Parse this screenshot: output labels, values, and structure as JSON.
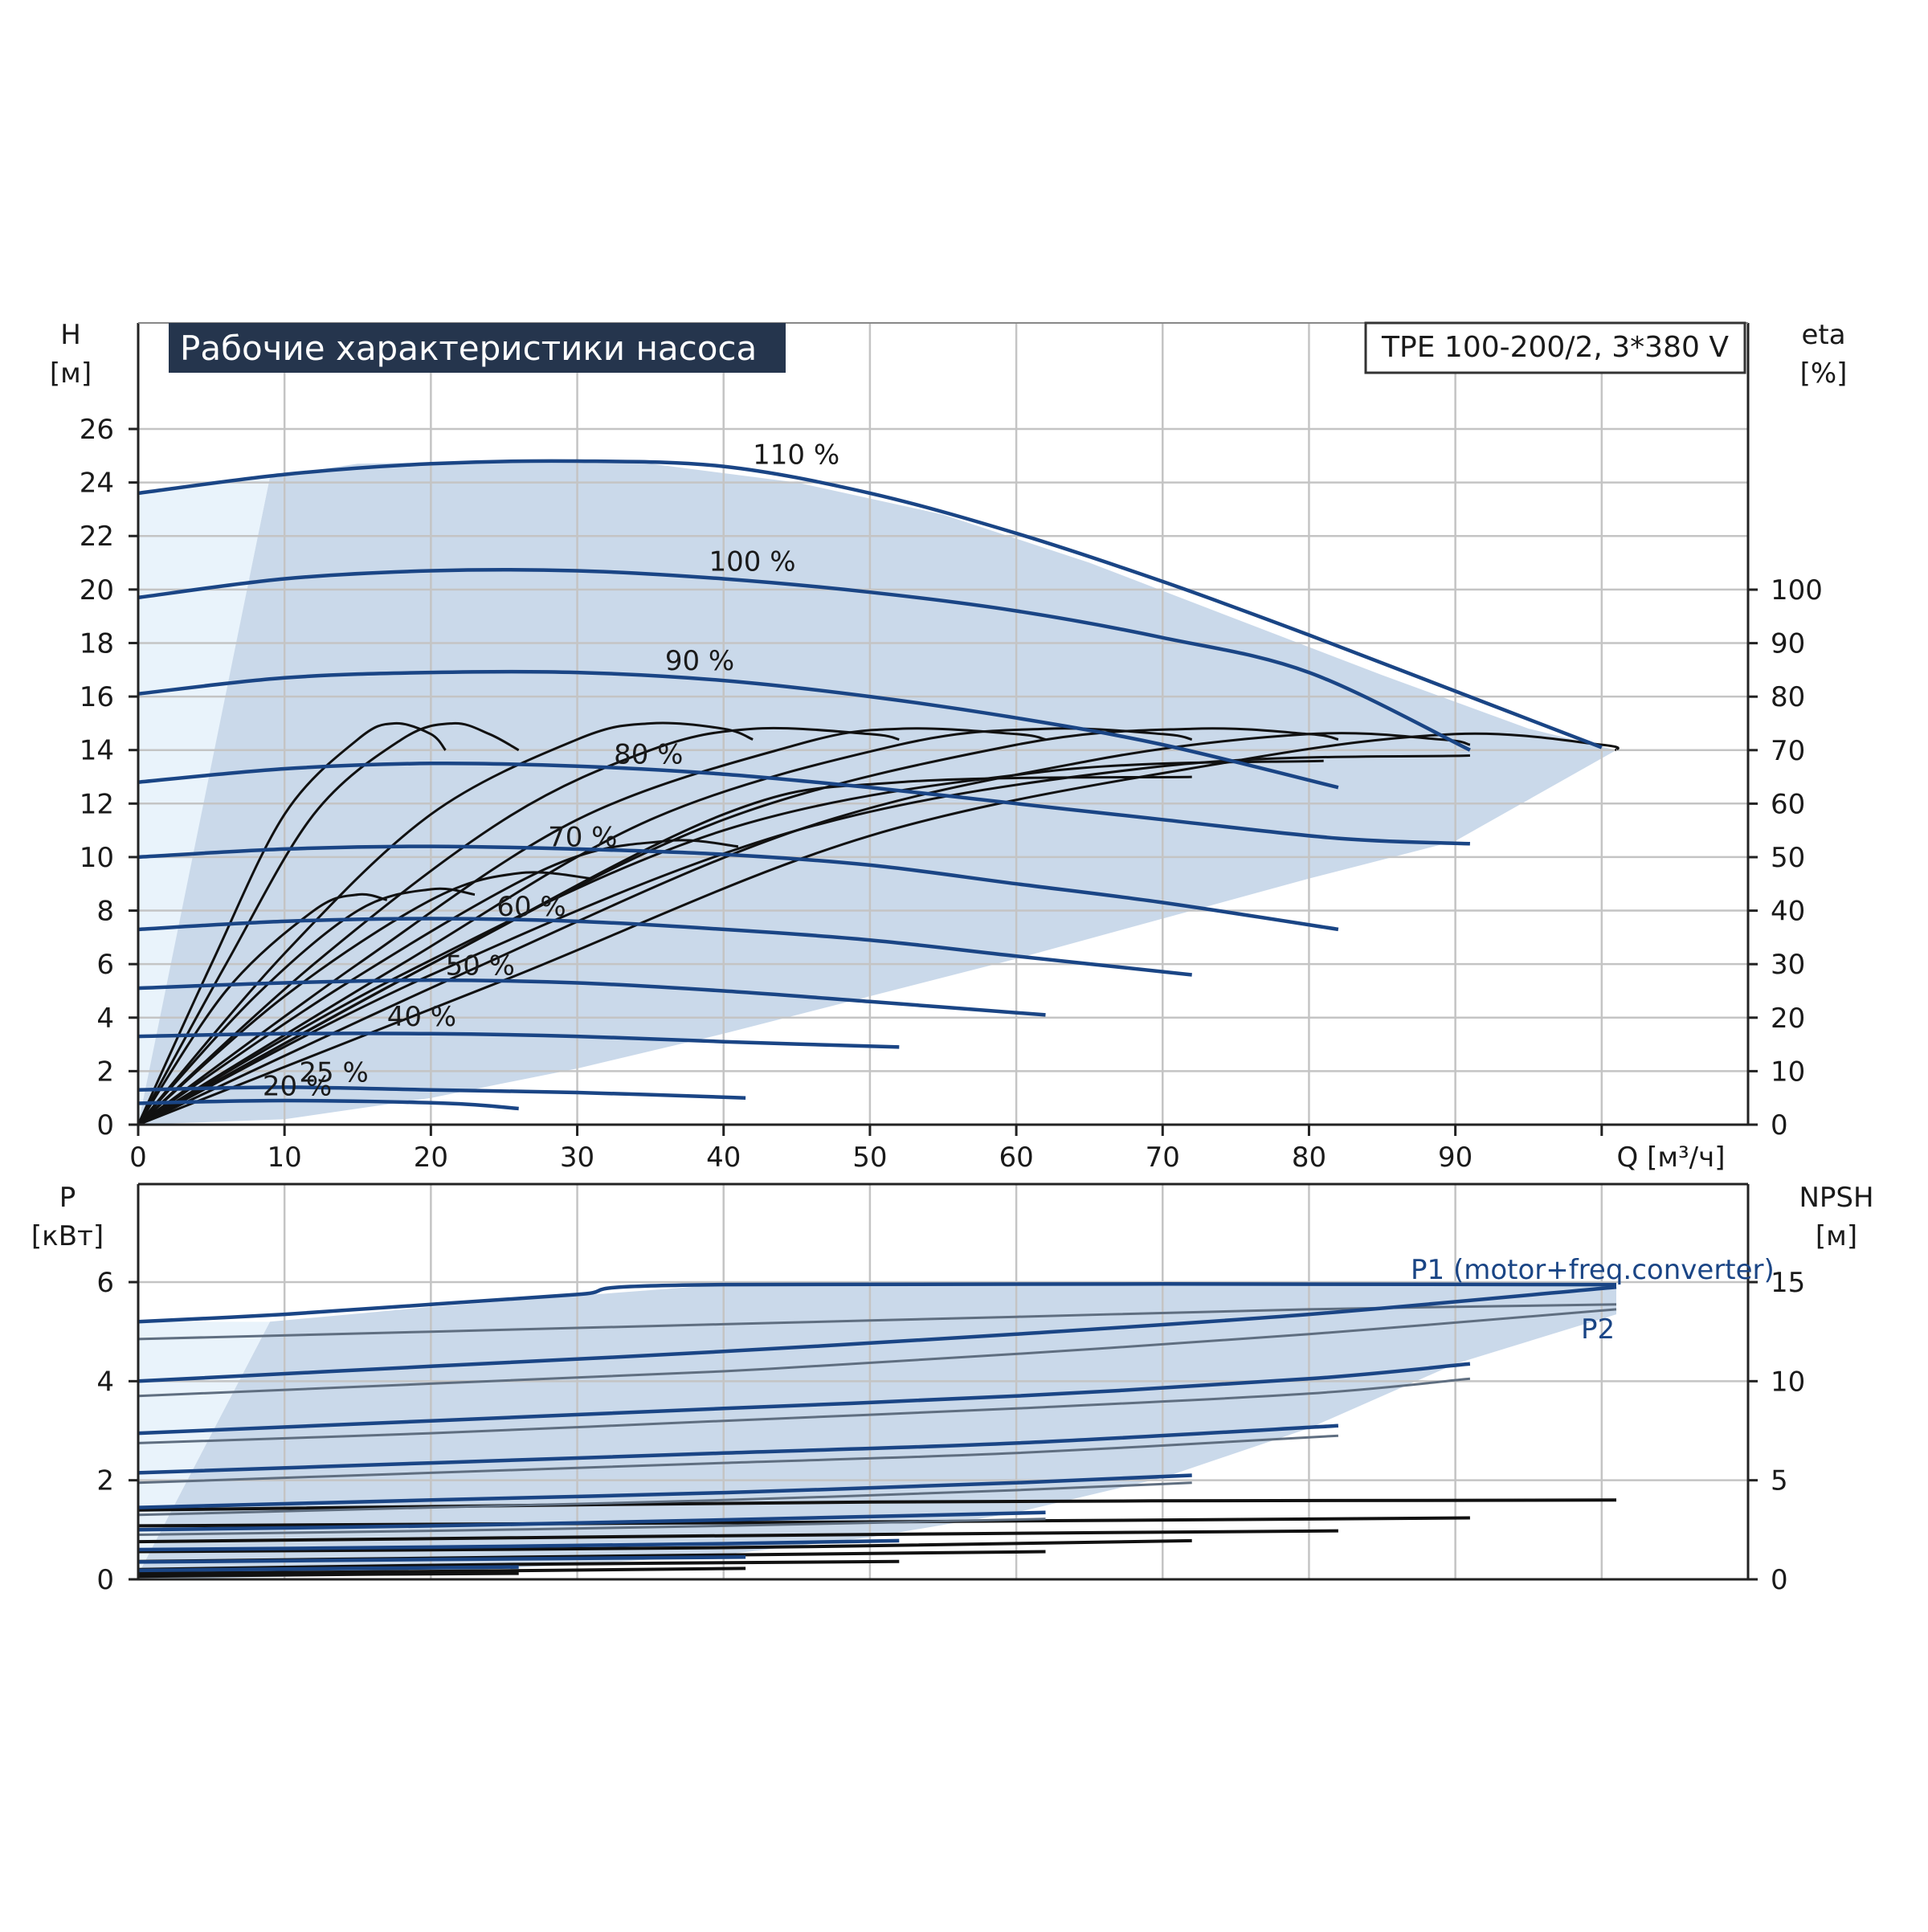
{
  "chart_data": [
    {
      "type": "line",
      "title": "Рабочие характеристики насоса",
      "model_label": "TPE 100-200/2, 3*380 V",
      "y_label_name": "H",
      "y_label_unit": "[м]",
      "y2_label_name": "eta",
      "y2_label_unit": "[%]",
      "x_label": "Q [м³/ч]",
      "xlim": [
        0,
        110
      ],
      "ylim": [
        0,
        28
      ],
      "x_ticks": [
        0,
        10,
        20,
        30,
        40,
        50,
        60,
        70,
        80,
        90
      ],
      "y_ticks": [
        0,
        2,
        4,
        6,
        8,
        10,
        12,
        14,
        16,
        18,
        20,
        22,
        24,
        26
      ],
      "y2_ticks": [
        0,
        10,
        20,
        30,
        40,
        50,
        60,
        70,
        80,
        90,
        100
      ],
      "y2lim": [
        0,
        140
      ],
      "grid": true,
      "series_color": "#1a4585",
      "efficiency_color": "#111111",
      "area_color": "#cad9ea",
      "series": [
        {
          "name": "110 %",
          "label_at": [
            42,
            24.4
          ],
          "x": [
            0,
            10,
            20,
            30,
            40,
            50,
            60,
            70,
            80,
            90,
            100
          ],
          "values": [
            23.6,
            24.3,
            24.7,
            24.8,
            24.6,
            23.6,
            22.1,
            20.3,
            18.3,
            16.2,
            14.1
          ]
        },
        {
          "name": "100 %",
          "label_at": [
            39,
            20.4
          ],
          "x": [
            0,
            10,
            20,
            30,
            40,
            50,
            60,
            70,
            80,
            91
          ],
          "values": [
            19.7,
            20.4,
            20.7,
            20.7,
            20.4,
            19.9,
            19.2,
            18.2,
            16.9,
            14.0
          ]
        },
        {
          "name": "90 %",
          "label_at": [
            36,
            16.7
          ],
          "x": [
            0,
            10,
            20,
            30,
            40,
            50,
            60,
            70,
            82
          ],
          "values": [
            16.1,
            16.7,
            16.9,
            16.9,
            16.6,
            16.0,
            15.2,
            14.2,
            12.6
          ]
        },
        {
          "name": "80 %",
          "label_at": [
            32.5,
            13.2
          ],
          "x": [
            0,
            10,
            20,
            30,
            40,
            50,
            60,
            70,
            82,
            91
          ],
          "values": [
            12.8,
            13.3,
            13.5,
            13.4,
            13.1,
            12.6,
            12.0,
            11.4,
            10.7,
            10.5
          ]
        },
        {
          "name": "70 %",
          "label_at": [
            28,
            10.1
          ],
          "x": [
            0,
            10,
            20,
            30,
            40,
            50,
            60,
            70,
            82
          ],
          "values": [
            10.0,
            10.3,
            10.4,
            10.3,
            10.1,
            9.7,
            9.0,
            8.3,
            7.3
          ]
        },
        {
          "name": "60 %",
          "label_at": [
            24.5,
            7.5
          ],
          "x": [
            0,
            10,
            20,
            30,
            40,
            50,
            60,
            72
          ],
          "values": [
            7.3,
            7.6,
            7.7,
            7.6,
            7.3,
            6.9,
            6.3,
            5.6
          ]
        },
        {
          "name": "50 %",
          "label_at": [
            21,
            5.3
          ],
          "x": [
            0,
            10,
            20,
            30,
            40,
            50,
            62
          ],
          "values": [
            5.1,
            5.3,
            5.4,
            5.3,
            5.0,
            4.6,
            4.1
          ]
        },
        {
          "name": "40 %",
          "label_at": [
            17,
            3.4
          ],
          "x": [
            0,
            10,
            20,
            30,
            40,
            52
          ],
          "values": [
            3.3,
            3.4,
            3.4,
            3.3,
            3.1,
            2.9
          ]
        },
        {
          "name": "25 %",
          "label_at": [
            11,
            1.3
          ],
          "x": [
            0,
            10,
            20,
            30,
            41.5
          ],
          "values": [
            1.3,
            1.4,
            1.3,
            1.2,
            1.0
          ]
        },
        {
          "name": "20 %",
          "label_at": [
            8.5,
            0.8
          ],
          "x": [
            0,
            10,
            21,
            26
          ],
          "values": [
            0.8,
            0.9,
            0.8,
            0.6
          ]
        }
      ],
      "efficiency_series": [
        {
          "x": [
            0,
            5,
            10,
            15,
            17.5,
            20,
            21
          ],
          "values": [
            0,
            30,
            58,
            72,
            75,
            73,
            70
          ]
        },
        {
          "x": [
            0,
            6,
            12,
            18,
            21.5,
            24,
            26
          ],
          "values": [
            0,
            30,
            58,
            72,
            75,
            73,
            70
          ]
        },
        {
          "x": [
            0,
            10,
            20,
            30,
            35,
            40,
            42
          ],
          "values": [
            0,
            32,
            58,
            72,
            75,
            74,
            72
          ]
        },
        {
          "x": [
            0,
            12,
            25,
            35,
            42,
            50,
            52
          ],
          "values": [
            0,
            30,
            57,
            70,
            74,
            73,
            72
          ]
        },
        {
          "x": [
            0,
            15,
            30,
            45,
            52,
            60,
            62
          ],
          "values": [
            0,
            30,
            57,
            71,
            74,
            73,
            72
          ]
        },
        {
          "x": [
            0,
            18,
            35,
            52,
            62,
            70,
            72
          ],
          "values": [
            0,
            30,
            57,
            71,
            74,
            73,
            72
          ]
        },
        {
          "x": [
            0,
            20,
            40,
            60,
            72,
            80,
            82
          ],
          "values": [
            0,
            30,
            57,
            71,
            74,
            73,
            72
          ]
        },
        {
          "x": [
            0,
            22,
            45,
            65,
            80,
            89,
            91
          ],
          "values": [
            0,
            28,
            55,
            68,
            73,
            72,
            71
          ]
        },
        {
          "x": [
            0,
            25,
            50,
            75,
            90,
            100,
            101
          ],
          "values": [
            0,
            27,
            54,
            68,
            73,
            71,
            70
          ]
        },
        {
          "x": [
            0,
            6,
            12,
            15,
            17
          ],
          "values": [
            0,
            25,
            40,
            43,
            42
          ]
        },
        {
          "x": [
            0,
            8,
            15,
            20,
            23
          ],
          "values": [
            0,
            24,
            40,
            44,
            43
          ]
        },
        {
          "x": [
            0,
            10,
            20,
            26,
            31
          ],
          "values": [
            0,
            24,
            42,
            47,
            46
          ]
        },
        {
          "x": [
            0,
            14,
            28,
            36,
            41
          ],
          "values": [
            0,
            26,
            48,
            53,
            52
          ]
        },
        {
          "x": [
            0,
            20,
            40,
            52,
            72
          ],
          "values": [
            0,
            30,
            58,
            64,
            65
          ]
        },
        {
          "x": [
            0,
            18,
            40,
            62,
            81
          ],
          "values": [
            0,
            28,
            55,
            66,
            68
          ]
        },
        {
          "x": [
            0,
            20,
            45,
            70,
            91
          ],
          "values": [
            0,
            28,
            55,
            67,
            69
          ]
        }
      ],
      "area_outline": {
        "x": [
          0,
          9,
          15,
          25,
          35,
          45,
          55,
          65,
          75,
          85,
          95,
          101,
          90,
          80,
          70,
          60,
          50,
          40,
          30,
          20,
          10,
          0
        ],
        "y": [
          0.3,
          24.2,
          24.7,
          24.8,
          24.7,
          24.0,
          22.8,
          21.0,
          18.9,
          16.8,
          14.8,
          14.0,
          10.6,
          9.2,
          7.7,
          6.2,
          4.8,
          3.4,
          2.1,
          1.0,
          0.2,
          0
        ]
      }
    },
    {
      "type": "line",
      "y_label_name": "P",
      "y_label_unit": "[кВт]",
      "y2_label_name": "NPSH",
      "y2_label_unit": "[м]",
      "xlim": [
        0,
        110
      ],
      "ylim": [
        0,
        8
      ],
      "y_ticks": [
        0,
        2,
        4,
        6
      ],
      "y2_ticks": [
        0,
        5,
        10,
        15
      ],
      "y2lim": [
        0,
        20
      ],
      "grid": true,
      "series_labels": [
        "P1 (motor+freq.converter)",
        "P2"
      ],
      "series": [
        {
          "group": "P1",
          "x": [
            0,
            10,
            20,
            30,
            40,
            101
          ],
          "values": [
            5.2,
            5.35,
            5.55,
            5.75,
            5.95,
            5.95
          ]
        },
        {
          "group": "P2",
          "x": [
            0,
            20,
            40,
            60,
            80,
            101
          ],
          "values": [
            4.85,
            5.0,
            5.15,
            5.3,
            5.45,
            5.55
          ]
        },
        {
          "group": "P1",
          "x": [
            0,
            20,
            40,
            60,
            80,
            101
          ],
          "values": [
            4.0,
            4.3,
            4.6,
            4.95,
            5.35,
            5.9
          ]
        },
        {
          "group": "P2",
          "x": [
            0,
            20,
            40,
            60,
            80,
            101
          ],
          "values": [
            3.7,
            3.95,
            4.2,
            4.55,
            4.95,
            5.45
          ]
        },
        {
          "group": "P1",
          "x": [
            0,
            20,
            40,
            60,
            80,
            91
          ],
          "values": [
            2.95,
            3.2,
            3.45,
            3.7,
            4.05,
            4.35
          ]
        },
        {
          "group": "P2",
          "x": [
            0,
            20,
            40,
            60,
            80,
            91
          ],
          "values": [
            2.75,
            2.95,
            3.2,
            3.45,
            3.75,
            4.05
          ]
        },
        {
          "group": "P1",
          "x": [
            0,
            20,
            40,
            60,
            82
          ],
          "values": [
            2.15,
            2.35,
            2.55,
            2.75,
            3.1
          ]
        },
        {
          "group": "P2",
          "x": [
            0,
            20,
            40,
            60,
            82
          ],
          "values": [
            1.95,
            2.15,
            2.35,
            2.55,
            2.9
          ]
        },
        {
          "group": "P1",
          "x": [
            0,
            20,
            40,
            60,
            72
          ],
          "values": [
            1.45,
            1.6,
            1.75,
            1.95,
            2.1
          ]
        },
        {
          "group": "P2",
          "x": [
            0,
            20,
            40,
            60,
            72
          ],
          "values": [
            1.3,
            1.45,
            1.6,
            1.8,
            1.95
          ]
        },
        {
          "group": "P1",
          "x": [
            0,
            20,
            40,
            62
          ],
          "values": [
            1.0,
            1.08,
            1.2,
            1.35
          ]
        },
        {
          "group": "P2",
          "x": [
            0,
            20,
            40,
            62
          ],
          "values": [
            0.9,
            0.98,
            1.08,
            1.22
          ]
        },
        {
          "group": "P1",
          "x": [
            0,
            20,
            40,
            52
          ],
          "values": [
            0.6,
            0.65,
            0.72,
            0.78
          ]
        },
        {
          "group": "P1",
          "x": [
            0,
            20,
            41.5
          ],
          "values": [
            0.35,
            0.4,
            0.45
          ]
        },
        {
          "group": "P1",
          "x": [
            0,
            15,
            26
          ],
          "values": [
            0.18,
            0.22,
            0.25
          ]
        }
      ],
      "npsh_series": [
        {
          "x": [
            0,
            50,
            101
          ],
          "values": [
            3.5,
            3.9,
            4.0
          ]
        },
        {
          "x": [
            0,
            50,
            91
          ],
          "values": [
            2.7,
            2.9,
            3.1
          ]
        },
        {
          "x": [
            0,
            40,
            82
          ],
          "values": [
            1.9,
            2.2,
            2.45
          ]
        },
        {
          "x": [
            0,
            40,
            72
          ],
          "values": [
            1.4,
            1.6,
            1.95
          ]
        },
        {
          "x": [
            0,
            30,
            62
          ],
          "values": [
            0.9,
            1.15,
            1.4
          ]
        },
        {
          "x": [
            0,
            25,
            52
          ],
          "values": [
            0.5,
            0.75,
            0.9
          ]
        },
        {
          "x": [
            0,
            20,
            41.5
          ],
          "values": [
            0.3,
            0.4,
            0.55
          ]
        },
        {
          "x": [
            0,
            15,
            26
          ],
          "values": [
            0.15,
            0.25,
            0.3
          ]
        }
      ],
      "area_outline": {
        "x": [
          0,
          9,
          20,
          40,
          60,
          80,
          101,
          101,
          90,
          80,
          70,
          60,
          50,
          40,
          30,
          20,
          10,
          0
        ],
        "y": [
          0.1,
          5.2,
          5.5,
          5.95,
          5.95,
          5.95,
          5.95,
          5.35,
          4.35,
          3.05,
          2.05,
          1.35,
          0.85,
          0.5,
          0.3,
          0.15,
          0.05,
          0
        ]
      }
    }
  ]
}
